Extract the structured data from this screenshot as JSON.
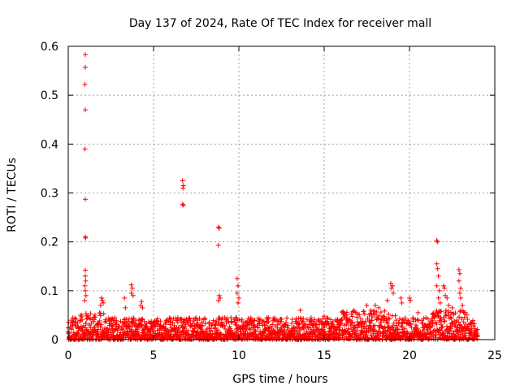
{
  "chart_data": {
    "type": "scatter",
    "title": "Day 137 of 2024, Rate Of TEC Index for receiver mall",
    "xlabel": "GPS time / hours",
    "ylabel": "ROTI / TECUs",
    "xlim": [
      0,
      25
    ],
    "ylim": [
      0,
      0.6
    ],
    "x_ticks": [
      0,
      5,
      10,
      15,
      20,
      25
    ],
    "x_tick_labels": [
      "0",
      "5",
      "10",
      "15",
      "20",
      "25"
    ],
    "y_ticks": [
      0,
      0.1,
      0.2,
      0.3,
      0.4,
      0.5,
      0.6
    ],
    "y_tick_labels": [
      "0",
      "0.1",
      "0.2",
      "0.3",
      "0.4",
      "0.5",
      "0.6"
    ],
    "grid": true,
    "marker": "+",
    "color": "#ff0000",
    "series": [
      {
        "name": "ROTI",
        "points": [
          [
            1.0,
            0.583
          ],
          [
            1.0,
            0.557
          ],
          [
            0.98,
            0.522
          ],
          [
            1.0,
            0.47
          ],
          [
            0.98,
            0.39
          ],
          [
            1.0,
            0.287
          ],
          [
            1.0,
            0.21
          ],
          [
            1.02,
            0.208
          ],
          [
            1.0,
            0.142
          ],
          [
            1.0,
            0.13
          ],
          [
            1.02,
            0.12
          ],
          [
            0.98,
            0.11
          ],
          [
            1.0,
            0.1
          ],
          [
            1.04,
            0.09
          ],
          [
            0.96,
            0.08
          ],
          [
            6.7,
            0.325
          ],
          [
            6.75,
            0.315
          ],
          [
            6.72,
            0.31
          ],
          [
            6.7,
            0.277
          ],
          [
            6.75,
            0.275
          ],
          [
            8.8,
            0.23
          ],
          [
            8.85,
            0.228
          ],
          [
            8.8,
            0.193
          ],
          [
            8.85,
            0.09
          ],
          [
            8.9,
            0.085
          ],
          [
            8.8,
            0.08
          ],
          [
            9.9,
            0.125
          ],
          [
            9.95,
            0.11
          ],
          [
            9.9,
            0.095
          ],
          [
            10.0,
            0.085
          ],
          [
            9.95,
            0.075
          ],
          [
            3.7,
            0.112
          ],
          [
            3.75,
            0.105
          ],
          [
            3.7,
            0.095
          ],
          [
            3.8,
            0.09
          ],
          [
            3.3,
            0.085
          ],
          [
            3.35,
            0.065
          ],
          [
            4.3,
            0.078
          ],
          [
            4.25,
            0.07
          ],
          [
            4.35,
            0.065
          ],
          [
            1.95,
            0.085
          ],
          [
            2.0,
            0.08
          ],
          [
            2.05,
            0.075
          ],
          [
            1.9,
            0.07
          ],
          [
            13.6,
            0.06
          ],
          [
            15.0,
            0.048
          ],
          [
            16.3,
            0.05
          ],
          [
            17.5,
            0.07
          ],
          [
            18.0,
            0.07
          ],
          [
            18.2,
            0.065
          ],
          [
            18.7,
            0.08
          ],
          [
            18.9,
            0.115
          ],
          [
            19.0,
            0.11
          ],
          [
            18.95,
            0.105
          ],
          [
            19.05,
            0.095
          ],
          [
            19.5,
            0.085
          ],
          [
            19.55,
            0.075
          ],
          [
            20.0,
            0.085
          ],
          [
            20.05,
            0.08
          ],
          [
            20.5,
            0.055
          ],
          [
            21.6,
            0.203
          ],
          [
            21.65,
            0.2
          ],
          [
            21.6,
            0.155
          ],
          [
            21.65,
            0.145
          ],
          [
            21.7,
            0.13
          ],
          [
            21.6,
            0.11
          ],
          [
            21.75,
            0.1
          ],
          [
            21.7,
            0.085
          ],
          [
            21.8,
            0.075
          ],
          [
            22.0,
            0.11
          ],
          [
            22.05,
            0.105
          ],
          [
            22.1,
            0.09
          ],
          [
            22.2,
            0.085
          ],
          [
            22.3,
            0.07
          ],
          [
            22.5,
            0.065
          ],
          [
            22.9,
            0.143
          ],
          [
            22.95,
            0.135
          ],
          [
            22.9,
            0.12
          ],
          [
            23.0,
            0.105
          ],
          [
            22.95,
            0.095
          ],
          [
            23.0,
            0.085
          ],
          [
            23.1,
            0.07
          ],
          [
            23.2,
            0.055
          ]
        ],
        "baseline_band": {
          "x_range": [
            0,
            24
          ],
          "typical_range": [
            0.0,
            0.045
          ],
          "note_values": [
            0.05,
            0.04,
            0.03,
            0.02,
            0.01
          ]
        }
      }
    ]
  }
}
